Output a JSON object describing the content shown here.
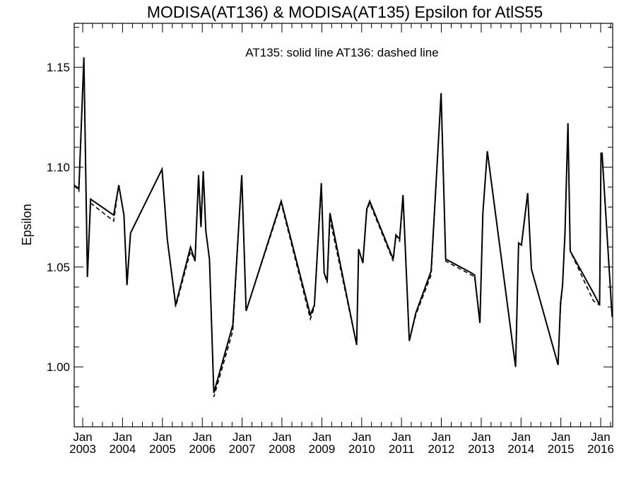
{
  "chart_data": {
    "type": "line",
    "title": "MODISA(AT136) & MODISA(AT135)  Epsilon for AtlS55",
    "annotation": "AT135: solid line   AT136: dashed line",
    "xlabel": "",
    "ylabel": "Epsilon",
    "xlim": [
      "2002-10-15",
      "2016-04-20"
    ],
    "ylim": [
      0.97,
      1.172
    ],
    "yticks": [
      1.0,
      1.05,
      1.1,
      1.15
    ],
    "ytick_labels": [
      "1.00",
      "1.05",
      "1.10",
      "1.15"
    ],
    "xtick_labels": [
      {
        "month": "Jan",
        "year": "2003"
      },
      {
        "month": "Jan",
        "year": "2004"
      },
      {
        "month": "Jan",
        "year": "2005"
      },
      {
        "month": "Jan",
        "year": "2006"
      },
      {
        "month": "Jan",
        "year": "2007"
      },
      {
        "month": "Jan",
        "year": "2008"
      },
      {
        "month": "Jan",
        "year": "2009"
      },
      {
        "month": "Jan",
        "year": "2010"
      },
      {
        "month": "Jan",
        "year": "2011"
      },
      {
        "month": "Jan",
        "year": "2012"
      },
      {
        "month": "Jan",
        "year": "2013"
      },
      {
        "month": "Jan",
        "year": "2014"
      },
      {
        "month": "Jan",
        "year": "2015"
      },
      {
        "month": "Jan",
        "year": "2016"
      }
    ],
    "grid": false,
    "series": [
      {
        "name": "AT135",
        "style": "solid",
        "color": "#000000",
        "x": [
          "2002-10-16",
          "2002-11-27",
          "2003-01-12",
          "2003-02-13",
          "2003-03-14",
          "2003-10-12",
          "2003-11-28",
          "2004-01-14",
          "2004-02-11",
          "2004-03-14",
          "2004-12-28",
          "2005-02-14",
          "2005-05-02",
          "2005-09-15",
          "2005-10-27",
          "2005-11-28",
          "2005-12-20",
          "2006-01-10",
          "2006-02-03",
          "2006-03-08",
          "2006-04-17",
          "2006-10-08",
          "2006-12-29",
          "2007-02-07",
          "2007-12-25",
          "2008-09-18",
          "2008-10-25",
          "2008-12-27",
          "2009-01-22",
          "2009-02-19",
          "2009-03-16",
          "2009-11-16",
          "2009-12-04",
          "2010-01-12",
          "2010-02-17",
          "2010-03-16",
          "2010-10-17",
          "2010-11-11",
          "2010-12-15",
          "2011-01-15",
          "2011-03-14",
          "2011-05-12",
          "2011-09-30",
          "2011-12-30",
          "2012-02-10",
          "2012-10-04",
          "2012-11-01",
          "2012-12-20",
          "2013-01-16",
          "2013-02-26",
          "2013-11-12",
          "2013-12-10",
          "2014-01-05",
          "2014-03-03",
          "2014-04-06",
          "2014-12-06",
          "2014-12-29",
          "2015-01-17",
          "2015-02-08",
          "2015-03-07",
          "2015-03-28",
          "2015-10-27",
          "2015-12-22",
          "2016-01-04",
          "2016-01-14",
          "2016-04-15"
        ],
        "y": [
          1.091,
          1.089,
          1.155,
          1.045,
          1.084,
          1.076,
          1.091,
          1.076,
          1.041,
          1.067,
          1.099,
          1.064,
          1.031,
          1.06,
          1.053,
          1.096,
          1.07,
          1.098,
          1.068,
          1.054,
          0.987,
          1.021,
          1.096,
          1.028,
          1.083,
          1.026,
          1.031,
          1.092,
          1.047,
          1.043,
          1.077,
          1.011,
          1.059,
          1.052,
          1.079,
          1.083,
          1.054,
          1.066,
          1.064,
          1.086,
          1.013,
          1.027,
          1.048,
          1.137,
          1.054,
          1.047,
          1.046,
          1.022,
          1.077,
          1.108,
          1.0,
          1.062,
          1.061,
          1.087,
          1.049,
          1.001,
          1.032,
          1.041,
          1.067,
          1.122,
          1.058,
          1.037,
          1.031,
          1.107,
          1.107,
          1.025
        ]
      },
      {
        "name": "AT136",
        "style": "dashed",
        "color": "#000000",
        "x": [
          "2002-10-16",
          "2002-11-27",
          "2003-01-12",
          "2003-02-13",
          "2003-03-14",
          "2003-10-12",
          "2003-11-28",
          "2004-01-14",
          "2004-02-11",
          "2004-03-14",
          "2004-12-28",
          "2005-02-14",
          "2005-05-02",
          "2005-09-15",
          "2005-10-27",
          "2005-11-28",
          "2005-12-20",
          "2006-01-10",
          "2006-02-03",
          "2006-03-08",
          "2006-04-17",
          "2006-10-08",
          "2006-12-29",
          "2007-02-07",
          "2007-12-25",
          "2008-09-18",
          "2008-10-25",
          "2008-12-27",
          "2009-01-22",
          "2009-02-19",
          "2009-03-16",
          "2009-11-16",
          "2009-12-04",
          "2010-01-12",
          "2010-02-17",
          "2010-03-16",
          "2010-10-17",
          "2010-11-11",
          "2010-12-15",
          "2011-01-15",
          "2011-03-14",
          "2011-05-12",
          "2011-09-30",
          "2011-12-30",
          "2012-02-10",
          "2012-10-04",
          "2012-11-01",
          "2012-12-20",
          "2013-01-16",
          "2013-02-26",
          "2013-11-12",
          "2013-12-10",
          "2014-01-05",
          "2014-03-03",
          "2014-04-06",
          "2014-12-06",
          "2014-12-29",
          "2015-01-17",
          "2015-02-08",
          "2015-03-07",
          "2015-03-28",
          "2015-10-27",
          "2015-12-22",
          "2016-01-04",
          "2016-01-14",
          "2016-04-15"
        ],
        "y": [
          1.091,
          1.088,
          1.154,
          1.045,
          1.082,
          1.073,
          1.091,
          1.076,
          1.041,
          1.067,
          1.099,
          1.064,
          1.03,
          1.058,
          1.053,
          1.096,
          1.07,
          1.097,
          1.068,
          1.054,
          0.985,
          1.018,
          1.096,
          1.028,
          1.082,
          1.024,
          1.03,
          1.091,
          1.047,
          1.042,
          1.074,
          1.011,
          1.059,
          1.052,
          1.078,
          1.082,
          1.053,
          1.066,
          1.063,
          1.085,
          1.013,
          1.026,
          1.046,
          1.137,
          1.053,
          1.046,
          1.045,
          1.022,
          1.077,
          1.108,
          1.0,
          1.062,
          1.061,
          1.087,
          1.049,
          1.001,
          1.03,
          1.041,
          1.067,
          1.121,
          1.058,
          1.033,
          1.031,
          1.106,
          1.106,
          1.025
        ]
      }
    ]
  }
}
